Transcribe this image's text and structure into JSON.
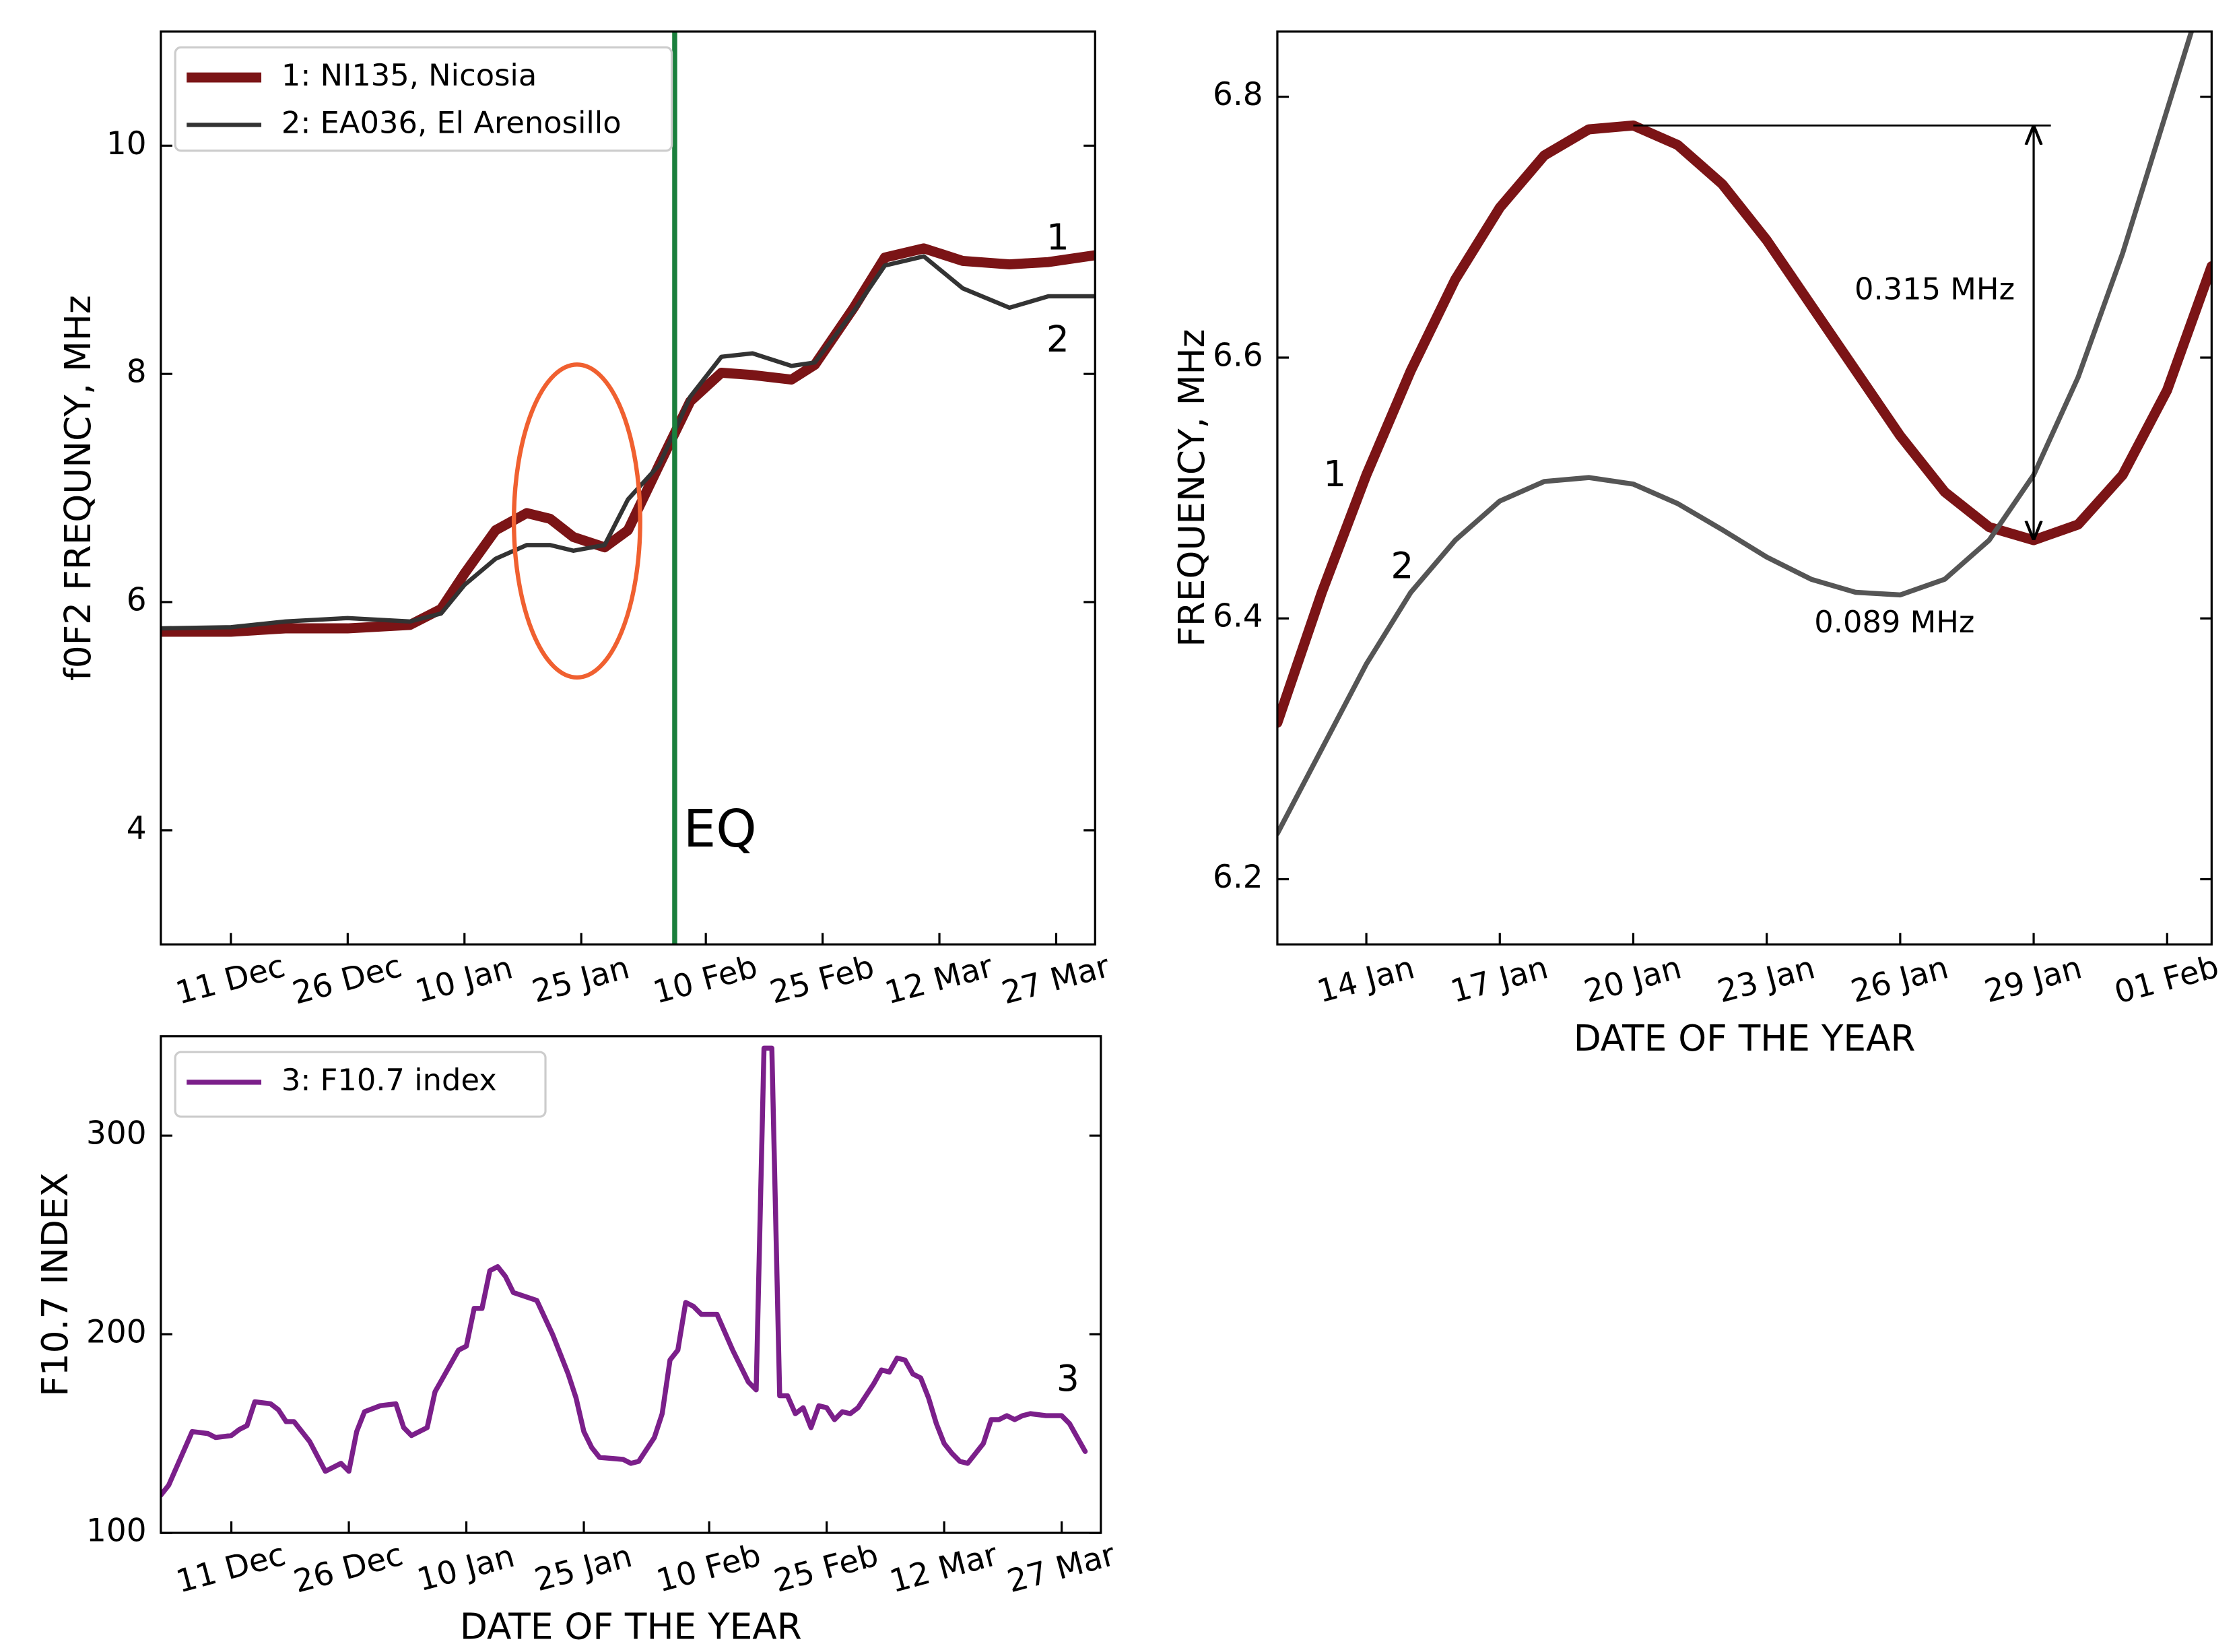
{
  "chart_data": [
    {
      "type": "line",
      "ylabel": "f0F2 FREQUNCY, MHz",
      "x": [
        "2 Dec",
        "11 Dec",
        "18 Dec",
        "26 Dec",
        "3 Jan",
        "7 Jan",
        "10 Jan",
        "14 Jan",
        "18 Jan",
        "21 Jan",
        "24 Jan",
        "28 Jan",
        "31 Jan",
        "4 Feb",
        "8 Feb",
        "12 Feb",
        "16 Feb",
        "21 Feb",
        "24 Feb",
        "1 Mar",
        "5 Mar",
        "10 Mar",
        "15 Mar",
        "21 Mar",
        "26 Mar",
        "1 Apr"
      ],
      "series": [
        {
          "name": "1: NI135, Nicosia",
          "label": "1",
          "color": "#7b1416",
          "linewidth": 7,
          "values": [
            5.74,
            5.74,
            5.77,
            5.77,
            5.8,
            5.94,
            6.25,
            6.63,
            6.78,
            6.73,
            6.57,
            6.48,
            6.63,
            7.2,
            7.76,
            8.01,
            7.99,
            7.95,
            8.08,
            8.58,
            9.02,
            9.1,
            8.99,
            8.96,
            8.98,
            9.04
          ]
        },
        {
          "name": "2: EA036, El Arenosillo",
          "label": "2",
          "color": "#333333",
          "linewidth": 3,
          "values": [
            5.77,
            5.78,
            5.83,
            5.86,
            5.83,
            5.9,
            6.15,
            6.38,
            6.5,
            6.5,
            6.45,
            6.5,
            6.9,
            7.2,
            7.8,
            8.15,
            8.18,
            8.07,
            8.1,
            8.55,
            8.95,
            9.03,
            8.75,
            8.58,
            8.68,
            8.68
          ]
        }
      ],
      "xlim": [
        "2 Dec",
        "1 Apr"
      ],
      "xticks": [
        "11 Dec",
        "26 Dec",
        "10 Jan",
        "25 Jan",
        "10 Feb",
        "25 Feb",
        "12 Mar",
        "27 Mar"
      ],
      "ylim": [
        3,
        11
      ],
      "yticks": [
        4,
        6,
        8,
        10
      ],
      "vline": {
        "x": "6 Feb",
        "label": "EQ",
        "color": "#1a7f3c"
      },
      "legend": "upper left"
    },
    {
      "type": "line",
      "xlabel": "DATE OF THE YEAR",
      "ylabel": "FREQUENCY, MHz",
      "x": [
        "12 Jan",
        "13 Jan",
        "14 Jan",
        "15 Jan",
        "16 Jan",
        "17 Jan",
        "18 Jan",
        "19 Jan",
        "20 Jan",
        "21 Jan",
        "22 Jan",
        "23 Jan",
        "24 Jan",
        "25 Jan",
        "26 Jan",
        "27 Jan",
        "28 Jan",
        "29 Jan",
        "30 Jan",
        "31 Jan",
        "1 Feb",
        "2 Feb"
      ],
      "series": [
        {
          "label": "1",
          "color": "#7b1416",
          "linewidth": 7,
          "values": [
            6.32,
            6.42,
            6.51,
            6.59,
            6.66,
            6.715,
            6.755,
            6.775,
            6.778,
            6.763,
            6.733,
            6.69,
            6.64,
            6.59,
            6.54,
            6.497,
            6.47,
            6.46,
            6.472,
            6.51,
            6.575,
            6.67
          ]
        },
        {
          "label": "2",
          "color": "#555555",
          "linewidth": 3.5,
          "values": [
            6.235,
            6.3,
            6.365,
            6.42,
            6.46,
            6.49,
            6.505,
            6.508,
            6.503,
            6.488,
            6.468,
            6.447,
            6.43,
            6.42,
            6.418,
            6.43,
            6.46,
            6.51,
            6.585,
            6.68,
            6.79,
            6.9
          ]
        }
      ],
      "xlim": [
        "12 Jan",
        "2 Feb"
      ],
      "xticks": [
        "14 Jan",
        "17 Jan",
        "20 Jan",
        "23 Jan",
        "26 Jan",
        "29 Jan",
        "01 Feb"
      ],
      "ylim": [
        6.15,
        6.85
      ],
      "yticks": [
        6.2,
        6.4,
        6.6,
        6.8
      ],
      "annotations": [
        "0.315 MHz",
        "0.089 MHz"
      ]
    },
    {
      "type": "line",
      "xlabel": "DATE OF THE YEAR",
      "ylabel": "F10.7 INDEX",
      "x": [
        "2 Dec",
        "3 Dec",
        "5 Dec",
        "6 Dec",
        "8 Dec",
        "9 Dec",
        "11 Dec",
        "12 Dec",
        "13 Dec",
        "14 Dec",
        "16 Dec",
        "17 Dec",
        "18 Dec",
        "19 Dec",
        "21 Dec",
        "23 Dec",
        "25 Dec",
        "26 Dec",
        "27 Dec",
        "28 Dec",
        "30 Dec",
        "1 Jan",
        "2 Jan",
        "3 Jan",
        "5 Jan",
        "6 Jan",
        "7 Jan",
        "9 Jan",
        "10 Jan",
        "11 Jan",
        "12 Jan",
        "13 Jan",
        "14 Jan",
        "15 Jan",
        "16 Jan",
        "19 Jan",
        "21 Jan",
        "22 Jan",
        "23 Jan",
        "24 Jan",
        "25 Jan",
        "26 Jan",
        "27 Jan",
        "30 Jan",
        "31 Jan",
        "1 Feb",
        "3 Feb",
        "4 Feb",
        "5 Feb",
        "6 Feb",
        "7 Feb",
        "8 Feb",
        "9 Feb",
        "11 Feb",
        "13 Feb",
        "15 Feb",
        "16 Feb",
        "17 Feb",
        "18 Feb",
        "19 Feb",
        "20 Feb",
        "21 Feb",
        "22 Feb",
        "23 Feb",
        "24 Feb",
        "25 Feb",
        "26 Feb",
        "27 Feb",
        "28 Feb",
        "1 Mar",
        "3 Mar",
        "4 Mar",
        "5 Mar",
        "6 Mar",
        "7 Mar",
        "8 Mar",
        "9 Mar",
        "10 Mar",
        "11 Mar",
        "12 Mar",
        "13 Mar",
        "14 Mar",
        "15 Mar",
        "16 Mar",
        "17 Mar",
        "18 Mar",
        "19 Mar",
        "20 Mar",
        "21 Mar",
        "22 Mar",
        "23 Mar",
        "25 Mar",
        "27 Mar",
        "28 Mar",
        "29 Mar",
        "30 Mar"
      ],
      "series": [
        {
          "name": "3: F10.7 index",
          "label": "3",
          "color": "#7b1f8a",
          "linewidth": 3.5,
          "values": [
            119,
            124,
            142,
            151,
            150,
            148,
            149,
            152,
            154,
            166,
            165,
            162,
            156,
            156,
            146,
            131,
            135,
            131,
            151,
            161,
            164,
            165,
            153,
            149,
            153,
            171,
            178,
            192,
            194,
            213,
            213,
            232,
            234,
            229,
            221,
            217,
            200,
            190,
            180,
            168,
            151,
            143,
            138,
            137,
            135,
            136,
            148,
            160,
            187,
            192,
            216,
            214,
            210,
            210,
            192,
            176,
            172,
            344,
            344,
            169,
            169,
            160,
            163,
            153,
            164,
            163,
            157,
            161,
            160,
            163,
            175,
            182,
            181,
            188,
            187,
            180,
            178,
            168,
            155,
            145,
            140,
            136,
            135,
            140,
            145,
            157,
            157,
            159,
            157,
            159,
            160,
            159,
            159,
            155,
            148,
            141
          ]
        }
      ],
      "xlim": [
        "2 Dec",
        "1 Apr"
      ],
      "xticks": [
        "11 Dec",
        "26 Dec",
        "10 Jan",
        "25 Jan",
        "10 Feb",
        "25 Feb",
        "12 Mar",
        "27 Mar"
      ],
      "ylim": [
        100,
        350
      ],
      "yticks": [
        100,
        200,
        300
      ],
      "legend": "upper left"
    }
  ]
}
